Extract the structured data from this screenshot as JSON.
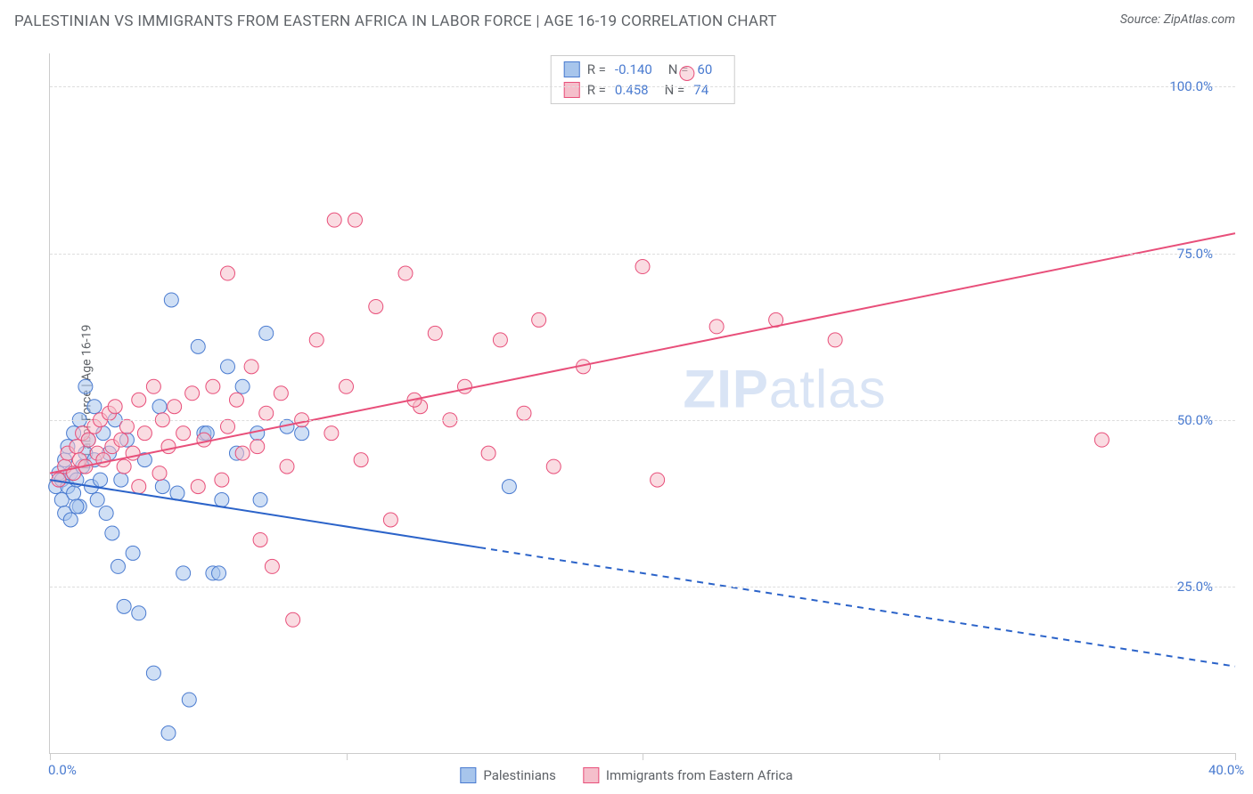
{
  "title": "PALESTINIAN VS IMMIGRANTS FROM EASTERN AFRICA IN LABOR FORCE | AGE 16-19 CORRELATION CHART",
  "source_label": "Source: ",
  "source_name": "ZipAtlas.com",
  "watermark_bold": "ZIP",
  "watermark_light": "atlas",
  "y_axis_label": "In Labor Force | Age 16-19",
  "chart": {
    "type": "scatter",
    "xlim": [
      0,
      40
    ],
    "ylim": [
      0,
      105
    ],
    "x_ticks": [
      0,
      10,
      20,
      30,
      40
    ],
    "x_tick_labels": {
      "0": "0.0%",
      "40": "40.0%"
    },
    "y_ticks": [
      25,
      50,
      75,
      100
    ],
    "y_tick_labels": {
      "25": "25.0%",
      "50": "50.0%",
      "75": "75.0%",
      "100": "100.0%"
    },
    "grid_color": "#dddddd",
    "axis_color": "#cccccc",
    "background_color": "#ffffff",
    "marker_radius": 8,
    "marker_opacity": 0.55,
    "series": [
      {
        "id": "palestinians",
        "label": "Palestinians",
        "color_fill": "#a7c5ec",
        "color_stroke": "#4a7bd0",
        "R": "-0.140",
        "N": "60",
        "trend": {
          "x1": 0,
          "y1": 41,
          "x2": 40,
          "y2": 13,
          "solid_until_x": 14.5,
          "color": "#2b63c9",
          "width": 2
        },
        "points": [
          [
            0.2,
            40
          ],
          [
            0.3,
            42
          ],
          [
            0.4,
            38
          ],
          [
            0.4,
            41
          ],
          [
            0.5,
            44
          ],
          [
            0.5,
            36
          ],
          [
            0.6,
            40
          ],
          [
            0.6,
            46
          ],
          [
            0.7,
            42
          ],
          [
            0.7,
            35
          ],
          [
            0.8,
            48
          ],
          [
            0.8,
            39
          ],
          [
            0.9,
            41
          ],
          [
            1.0,
            50
          ],
          [
            1.0,
            37
          ],
          [
            1.1,
            43
          ],
          [
            1.2,
            45
          ],
          [
            1.3,
            47
          ],
          [
            1.4,
            40
          ],
          [
            1.5,
            44
          ],
          [
            1.5,
            52
          ],
          [
            1.6,
            38
          ],
          [
            1.7,
            41
          ],
          [
            1.8,
            48
          ],
          [
            1.9,
            36
          ],
          [
            2.0,
            45
          ],
          [
            2.1,
            33
          ],
          [
            2.2,
            50
          ],
          [
            2.3,
            28
          ],
          [
            2.5,
            22
          ],
          [
            2.6,
            47
          ],
          [
            2.8,
            30
          ],
          [
            3.0,
            21
          ],
          [
            3.2,
            44
          ],
          [
            3.5,
            12
          ],
          [
            3.7,
            52
          ],
          [
            4.0,
            3
          ],
          [
            4.1,
            68
          ],
          [
            4.3,
            39
          ],
          [
            4.5,
            27
          ],
          [
            4.7,
            8
          ],
          [
            5.0,
            61
          ],
          [
            5.2,
            48
          ],
          [
            5.3,
            48
          ],
          [
            5.5,
            27
          ],
          [
            5.7,
            27
          ],
          [
            6.0,
            58
          ],
          [
            6.3,
            45
          ],
          [
            6.5,
            55
          ],
          [
            7.0,
            48
          ],
          [
            7.1,
            38
          ],
          [
            7.3,
            63
          ],
          [
            8.0,
            49
          ],
          [
            8.5,
            48
          ],
          [
            5.8,
            38
          ],
          [
            3.8,
            40
          ],
          [
            15.5,
            40
          ],
          [
            1.2,
            55
          ],
          [
            2.4,
            41
          ],
          [
            0.9,
            37
          ]
        ]
      },
      {
        "id": "eastafrica",
        "label": "Immigrants from Eastern Africa",
        "color_fill": "#f5bfcb",
        "color_stroke": "#e84f7a",
        "R": "0.458",
        "N": "74",
        "trend": {
          "x1": 0,
          "y1": 42,
          "x2": 40,
          "y2": 78,
          "solid_until_x": 40,
          "color": "#e84f7a",
          "width": 2
        },
        "points": [
          [
            0.3,
            41
          ],
          [
            0.5,
            43
          ],
          [
            0.6,
            45
          ],
          [
            0.8,
            42
          ],
          [
            0.9,
            46
          ],
          [
            1.0,
            44
          ],
          [
            1.1,
            48
          ],
          [
            1.2,
            43
          ],
          [
            1.3,
            47
          ],
          [
            1.5,
            49
          ],
          [
            1.6,
            45
          ],
          [
            1.7,
            50
          ],
          [
            1.8,
            44
          ],
          [
            2.0,
            51
          ],
          [
            2.1,
            46
          ],
          [
            2.2,
            52
          ],
          [
            2.4,
            47
          ],
          [
            2.5,
            43
          ],
          [
            2.6,
            49
          ],
          [
            2.8,
            45
          ],
          [
            3.0,
            53
          ],
          [
            3.0,
            40
          ],
          [
            3.2,
            48
          ],
          [
            3.5,
            55
          ],
          [
            3.7,
            42
          ],
          [
            3.8,
            50
          ],
          [
            4.0,
            46
          ],
          [
            4.2,
            52
          ],
          [
            4.5,
            48
          ],
          [
            4.8,
            54
          ],
          [
            5.0,
            40
          ],
          [
            5.2,
            47
          ],
          [
            5.5,
            55
          ],
          [
            5.8,
            41
          ],
          [
            6.0,
            49
          ],
          [
            6.0,
            72
          ],
          [
            6.3,
            53
          ],
          [
            6.5,
            45
          ],
          [
            6.8,
            58
          ],
          [
            7.0,
            46
          ],
          [
            7.1,
            32
          ],
          [
            7.3,
            51
          ],
          [
            7.5,
            28
          ],
          [
            7.8,
            54
          ],
          [
            8.0,
            43
          ],
          [
            8.2,
            20
          ],
          [
            8.5,
            50
          ],
          [
            9.0,
            62
          ],
          [
            9.5,
            48
          ],
          [
            9.6,
            80
          ],
          [
            10.0,
            55
          ],
          [
            10.3,
            80
          ],
          [
            10.5,
            44
          ],
          [
            11.0,
            67
          ],
          [
            11.5,
            35
          ],
          [
            12.0,
            72
          ],
          [
            12.5,
            52
          ],
          [
            13.0,
            63
          ],
          [
            13.5,
            50
          ],
          [
            14.0,
            55
          ],
          [
            15.2,
            62
          ],
          [
            16.0,
            51
          ],
          [
            16.5,
            65
          ],
          [
            17.0,
            43
          ],
          [
            18.0,
            58
          ],
          [
            20.0,
            73
          ],
          [
            20.5,
            41
          ],
          [
            21.5,
            102
          ],
          [
            22.5,
            64
          ],
          [
            24.5,
            65
          ],
          [
            26.5,
            62
          ],
          [
            35.5,
            47
          ],
          [
            12.3,
            53
          ],
          [
            14.8,
            45
          ]
        ]
      }
    ]
  },
  "legend_box": {
    "R_label": "R =",
    "N_label": "N ="
  }
}
